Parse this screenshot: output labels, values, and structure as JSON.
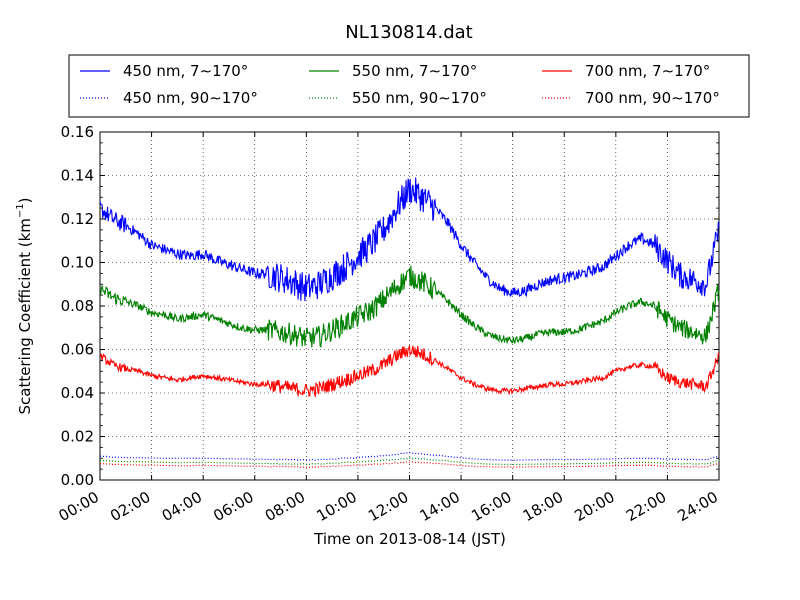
{
  "chart_data": {
    "type": "line",
    "title": "NL130814.dat",
    "xlabel": "Time on 2013-08-14 (JST)",
    "ylabel": "Scattering Coefficient (km",
    "ylabel_exponent": "−1",
    "ylabel_close": ")",
    "xlim": [
      "00:00",
      "24:00"
    ],
    "ylim": [
      0,
      0.16
    ],
    "x_tick_labels": [
      "00:00",
      "02:00",
      "04:00",
      "06:00",
      "08:00",
      "10:00",
      "12:00",
      "14:00",
      "16:00",
      "18:00",
      "20:00",
      "22:00",
      "24:00"
    ],
    "y_tick_labels": [
      "0.00",
      "0.02",
      "0.04",
      "0.06",
      "0.08",
      "0.10",
      "0.12",
      "0.14",
      "0.16"
    ],
    "grid": true,
    "legend_placement": "top, above plot",
    "x_hours": [
      0,
      0.5,
      1,
      1.5,
      2,
      2.5,
      3,
      3.5,
      4,
      4.5,
      5,
      5.5,
      6,
      6.5,
      7,
      7.5,
      8,
      8.5,
      9,
      9.5,
      10,
      10.5,
      11,
      11.5,
      12,
      12.5,
      13,
      13.5,
      14,
      14.5,
      15,
      15.5,
      16,
      16.5,
      17,
      17.5,
      18,
      18.5,
      19,
      19.5,
      20,
      20.5,
      21,
      21.5,
      22,
      22.5,
      23,
      23.5,
      24
    ],
    "series": [
      {
        "name": "450 nm, 7∼170°",
        "color": "#0000ff",
        "style": "solid",
        "values": [
          0.125,
          0.12,
          0.117,
          0.113,
          0.108,
          0.106,
          0.104,
          0.103,
          0.104,
          0.101,
          0.099,
          0.097,
          0.095,
          0.095,
          0.093,
          0.091,
          0.088,
          0.09,
          0.094,
          0.098,
          0.103,
          0.108,
          0.115,
          0.125,
          0.134,
          0.13,
          0.125,
          0.118,
          0.108,
          0.1,
          0.093,
          0.088,
          0.086,
          0.087,
          0.09,
          0.092,
          0.093,
          0.094,
          0.096,
          0.098,
          0.103,
          0.108,
          0.111,
          0.108,
          0.101,
          0.094,
          0.092,
          0.09,
          0.115
        ]
      },
      {
        "name": "550 nm, 7∼170°",
        "color": "#008000",
        "style": "solid",
        "values": [
          0.088,
          0.084,
          0.082,
          0.08,
          0.077,
          0.076,
          0.074,
          0.075,
          0.076,
          0.074,
          0.072,
          0.07,
          0.069,
          0.069,
          0.068,
          0.067,
          0.065,
          0.066,
          0.069,
          0.072,
          0.075,
          0.078,
          0.083,
          0.089,
          0.094,
          0.091,
          0.087,
          0.082,
          0.076,
          0.071,
          0.067,
          0.065,
          0.064,
          0.065,
          0.067,
          0.068,
          0.068,
          0.069,
          0.071,
          0.073,
          0.077,
          0.08,
          0.082,
          0.08,
          0.074,
          0.07,
          0.068,
          0.066,
          0.088
        ]
      },
      {
        "name": "700 nm, 7∼170°",
        "color": "#ff0000",
        "style": "solid",
        "values": [
          0.057,
          0.053,
          0.051,
          0.05,
          0.048,
          0.047,
          0.046,
          0.047,
          0.048,
          0.047,
          0.046,
          0.045,
          0.044,
          0.044,
          0.043,
          0.042,
          0.041,
          0.042,
          0.044,
          0.046,
          0.048,
          0.05,
          0.053,
          0.057,
          0.06,
          0.058,
          0.055,
          0.051,
          0.047,
          0.044,
          0.042,
          0.041,
          0.041,
          0.042,
          0.043,
          0.044,
          0.044,
          0.045,
          0.046,
          0.047,
          0.05,
          0.052,
          0.053,
          0.052,
          0.047,
          0.045,
          0.044,
          0.043,
          0.057
        ]
      },
      {
        "name": "450 nm, 90∼170°",
        "color": "#0000ff",
        "style": "dotted",
        "values": [
          0.011,
          0.0105,
          0.0103,
          0.0102,
          0.0101,
          0.01,
          0.01,
          0.01,
          0.01,
          0.0099,
          0.0098,
          0.0097,
          0.0096,
          0.0095,
          0.0094,
          0.0093,
          0.0092,
          0.0093,
          0.0096,
          0.01,
          0.0103,
          0.0107,
          0.0112,
          0.0118,
          0.0125,
          0.012,
          0.0115,
          0.0108,
          0.0102,
          0.0097,
          0.0094,
          0.0092,
          0.0091,
          0.0092,
          0.0093,
          0.0094,
          0.0094,
          0.0094,
          0.0095,
          0.0096,
          0.0098,
          0.0099,
          0.01,
          0.0099,
          0.0097,
          0.0095,
          0.0094,
          0.0093,
          0.011
        ]
      },
      {
        "name": "550 nm, 90∼170°",
        "color": "#008000",
        "style": "dotted",
        "values": [
          0.009,
          0.0087,
          0.0085,
          0.0084,
          0.0082,
          0.0081,
          0.008,
          0.008,
          0.0081,
          0.008,
          0.0079,
          0.0078,
          0.0077,
          0.0076,
          0.0075,
          0.0074,
          0.0073,
          0.0074,
          0.0077,
          0.008,
          0.0083,
          0.0086,
          0.009,
          0.0095,
          0.01,
          0.0097,
          0.0092,
          0.0087,
          0.0081,
          0.0077,
          0.0074,
          0.0072,
          0.0072,
          0.0072,
          0.0073,
          0.0074,
          0.0074,
          0.0075,
          0.0076,
          0.0077,
          0.0079,
          0.008,
          0.0081,
          0.008,
          0.0077,
          0.0075,
          0.0074,
          0.0073,
          0.009
        ]
      },
      {
        "name": "700 nm, 90∼170°",
        "color": "#ff0000",
        "style": "dotted",
        "values": [
          0.0075,
          0.0072,
          0.007,
          0.0069,
          0.0068,
          0.0067,
          0.0066,
          0.0066,
          0.0067,
          0.0066,
          0.0065,
          0.0064,
          0.0063,
          0.0062,
          0.0061,
          0.006,
          0.006,
          0.0061,
          0.0063,
          0.0066,
          0.0068,
          0.0071,
          0.0075,
          0.0079,
          0.0083,
          0.008,
          0.0077,
          0.0072,
          0.0067,
          0.0063,
          0.0061,
          0.006,
          0.006,
          0.006,
          0.0061,
          0.0061,
          0.0062,
          0.0062,
          0.0063,
          0.0064,
          0.0066,
          0.0067,
          0.0068,
          0.0067,
          0.0064,
          0.0062,
          0.0061,
          0.006,
          0.0075
        ]
      }
    ]
  }
}
